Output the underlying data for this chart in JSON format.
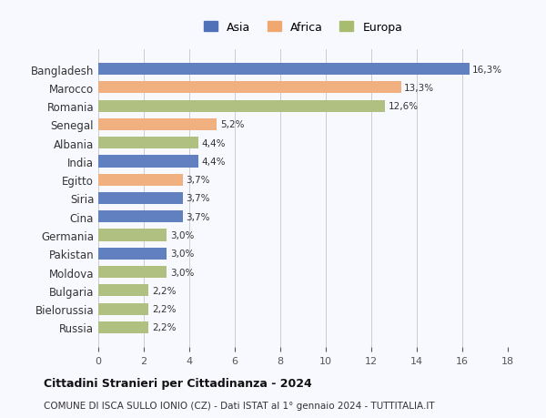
{
  "categories": [
    "Bangladesh",
    "Marocco",
    "Romania",
    "Senegal",
    "Albania",
    "India",
    "Egitto",
    "Siria",
    "Cina",
    "Germania",
    "Pakistan",
    "Moldova",
    "Bulgaria",
    "Bielorussia",
    "Russia"
  ],
  "values": [
    16.3,
    13.3,
    12.6,
    5.2,
    4.4,
    4.4,
    3.7,
    3.7,
    3.7,
    3.0,
    3.0,
    3.0,
    2.2,
    2.2,
    2.2
  ],
  "labels": [
    "16,3%",
    "13,3%",
    "12,6%",
    "5,2%",
    "4,4%",
    "4,4%",
    "3,7%",
    "3,7%",
    "3,7%",
    "3,0%",
    "3,0%",
    "3,0%",
    "2,2%",
    "2,2%",
    "2,2%"
  ],
  "continents": [
    "Asia",
    "Africa",
    "Europa",
    "Africa",
    "Europa",
    "Asia",
    "Africa",
    "Asia",
    "Asia",
    "Europa",
    "Asia",
    "Europa",
    "Europa",
    "Europa",
    "Europa"
  ],
  "colors": {
    "Asia": "#6080c0",
    "Africa": "#f0b080",
    "Europa": "#b0c080"
  },
  "legend_colors": {
    "Asia": "#5070b8",
    "Africa": "#f0a870",
    "Europa": "#a8bc70"
  },
  "xlim": [
    0,
    18
  ],
  "xticks": [
    0,
    2,
    4,
    6,
    8,
    10,
    12,
    14,
    16,
    18
  ],
  "title": "Cittadini Stranieri per Cittadinanza - 2024",
  "subtitle": "COMUNE DI ISCA SULLO IONIO (CZ) - Dati ISTAT al 1° gennaio 2024 - TUTTITALIA.IT",
  "bg_color": "#f8f8ff",
  "grid_color": "#cccccc",
  "bar_height": 0.65
}
